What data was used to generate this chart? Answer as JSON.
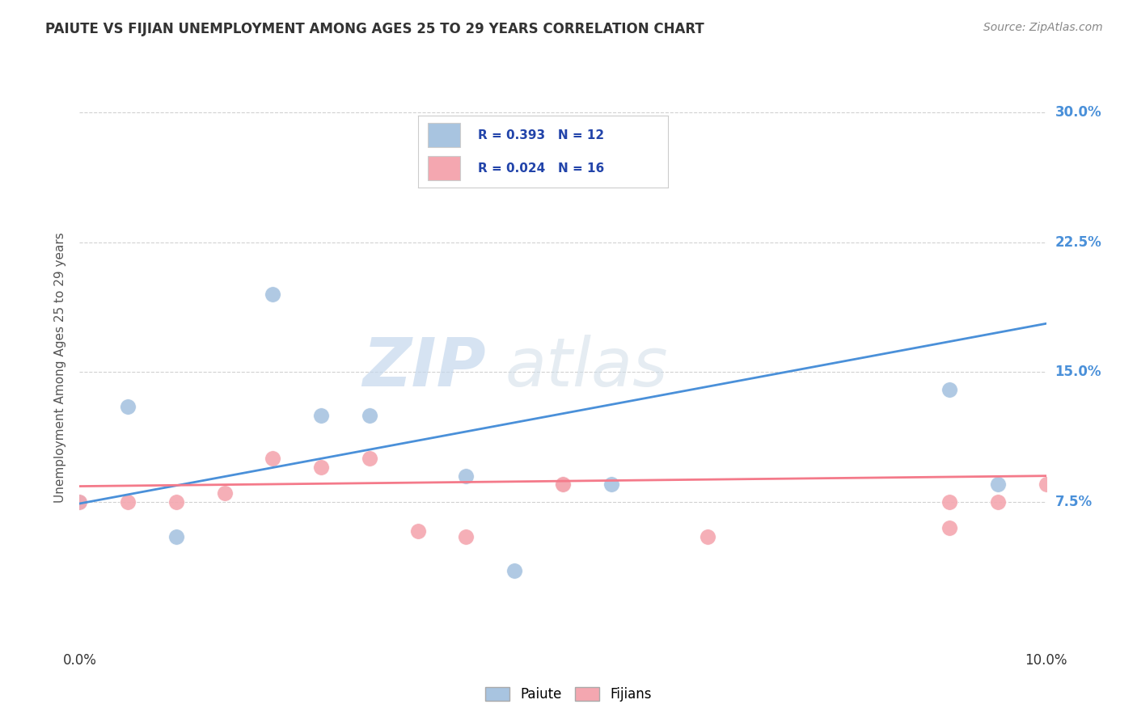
{
  "title": "PAIUTE VS FIJIAN UNEMPLOYMENT AMONG AGES 25 TO 29 YEARS CORRELATION CHART",
  "source": "Source: ZipAtlas.com",
  "ylabel": "Unemployment Among Ages 25 to 29 years",
  "xlim": [
    0.0,
    0.1
  ],
  "ylim": [
    -0.01,
    0.315
  ],
  "paiute_color": "#a8c4e0",
  "fijian_color": "#f4a7b0",
  "paiute_line_color": "#4a90d9",
  "fijian_line_color": "#f47a8a",
  "paiute_R": "0.393",
  "paiute_N": "12",
  "fijian_R": "0.024",
  "fijian_N": "16",
  "watermark_zip": "ZIP",
  "watermark_atlas": "atlas",
  "paiute_x": [
    0.0,
    0.005,
    0.01,
    0.02,
    0.025,
    0.03,
    0.04,
    0.045,
    0.05,
    0.055,
    0.09,
    0.095
  ],
  "paiute_y": [
    0.075,
    0.13,
    0.055,
    0.195,
    0.125,
    0.125,
    0.09,
    0.035,
    0.085,
    0.085,
    0.14,
    0.085
  ],
  "fijian_x": [
    0.0,
    0.005,
    0.01,
    0.015,
    0.02,
    0.025,
    0.03,
    0.035,
    0.04,
    0.05,
    0.05,
    0.065,
    0.09,
    0.09,
    0.095,
    0.1
  ],
  "fijian_y": [
    0.075,
    0.075,
    0.075,
    0.08,
    0.1,
    0.095,
    0.1,
    0.058,
    0.055,
    0.085,
    0.085,
    0.055,
    0.075,
    0.06,
    0.075,
    0.085
  ],
  "paiute_trendline_x": [
    0.0,
    0.1
  ],
  "paiute_trendline_y": [
    0.074,
    0.178
  ],
  "fijian_trendline_x": [
    0.0,
    0.1
  ],
  "fijian_trendline_y": [
    0.084,
    0.09
  ],
  "background_color": "#ffffff",
  "grid_color": "#cccccc",
  "right_axis_color": "#4a90d9",
  "yticks": [
    0.075,
    0.15,
    0.225,
    0.3
  ],
  "ytick_labels": [
    "7.5%",
    "15.0%",
    "22.5%",
    "30.0%"
  ],
  "xticks": [
    0.0,
    0.1
  ],
  "xtick_labels": [
    "0.0%",
    "10.0%"
  ]
}
